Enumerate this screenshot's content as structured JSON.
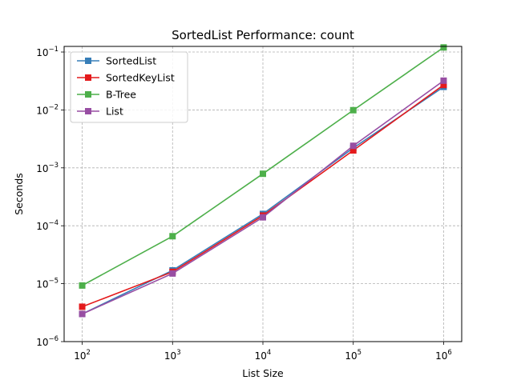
{
  "chart_data": {
    "type": "line",
    "title": "SortedList Performance: count",
    "xlabel": "List Size",
    "ylabel": "Seconds",
    "xscale": "log",
    "yscale": "log",
    "xlim": [
      63.0957,
      1584890.0
    ],
    "ylim": [
      1e-06,
      0.125
    ],
    "grid": true,
    "legend_position": "top-left",
    "x": [
      100,
      1000,
      10000,
      100000,
      1000000
    ],
    "x_ticks": [
      {
        "value": 100,
        "base": "10",
        "exp": "2"
      },
      {
        "value": 1000,
        "base": "10",
        "exp": "3"
      },
      {
        "value": 10000,
        "base": "10",
        "exp": "4"
      },
      {
        "value": 100000,
        "base": "10",
        "exp": "5"
      },
      {
        "value": 1000000,
        "base": "10",
        "exp": "6"
      }
    ],
    "y_ticks": [
      {
        "value": 1e-06,
        "base": "10",
        "exp": "−6"
      },
      {
        "value": 1e-05,
        "base": "10",
        "exp": "−5"
      },
      {
        "value": 0.0001,
        "base": "10",
        "exp": "−4"
      },
      {
        "value": 0.001,
        "base": "10",
        "exp": "−3"
      },
      {
        "value": 0.01,
        "base": "10",
        "exp": "−2"
      },
      {
        "value": 0.1,
        "base": "10",
        "exp": "−1"
      }
    ],
    "series": [
      {
        "name": "SortedList",
        "color": "#377eb8",
        "values": [
          3e-06,
          1.7e-05,
          0.00016,
          0.0022,
          0.025
        ]
      },
      {
        "name": "SortedKeyList",
        "color": "#e41a1c",
        "values": [
          4e-06,
          1.6e-05,
          0.00015,
          0.002,
          0.027
        ]
      },
      {
        "name": "B-Tree",
        "color": "#4daf4a",
        "values": [
          9.3e-06,
          6.6e-05,
          0.00079,
          0.0099,
          0.12
        ]
      },
      {
        "name": "List",
        "color": "#984ea3",
        "values": [
          3e-06,
          1.5e-05,
          0.00014,
          0.0024,
          0.032
        ]
      }
    ]
  }
}
